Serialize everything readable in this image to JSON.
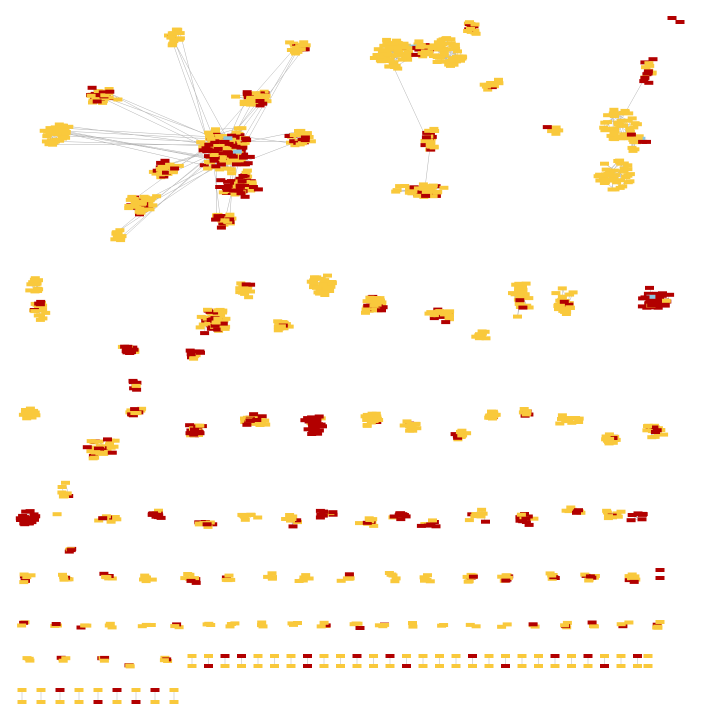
{
  "network": {
    "node_colors": {
      "yellow": "#F9C93C",
      "red": "#B20000",
      "blue": "#8DC6E0"
    },
    "edge_color": "#B3B3B3",
    "background": "#FFFFFF",
    "components": [
      {
        "id": "c1",
        "kind": "hub-network",
        "yellow": 520,
        "red": 170,
        "blue": 4
      },
      {
        "id": "c2",
        "kind": "dense-cluster-pair",
        "yellow": 210,
        "red": 20,
        "blue": 2
      },
      {
        "id": "c3",
        "kind": "dense-cluster-pair",
        "yellow": 140,
        "red": 14,
        "blue": 2
      },
      {
        "id": "c4",
        "kind": "cluster",
        "yellow": 28,
        "red": 6
      },
      {
        "id": "c5",
        "kind": "cluster",
        "yellow": 30,
        "red": 14
      },
      {
        "id": "c6",
        "kind": "cluster",
        "yellow": 40,
        "red": 32
      },
      {
        "id": "c7",
        "kind": "dense-cluster",
        "yellow": 55,
        "red": 0
      },
      {
        "id": "c8",
        "kind": "cluster",
        "yellow": 28,
        "red": 10
      },
      {
        "id": "c9",
        "kind": "cluster",
        "yellow": 32,
        "red": 2
      },
      {
        "id": "c10",
        "kind": "cluster",
        "yellow": 30,
        "red": 2
      },
      {
        "id": "c11",
        "kind": "cluster",
        "yellow": 2,
        "red": 45,
        "blue": 1
      },
      {
        "id": "c12",
        "kind": "cluster",
        "yellow": 24,
        "red": 20
      },
      {
        "id": "c13",
        "kind": "cluster",
        "yellow": 4,
        "red": 30
      }
    ],
    "small_graph_rows": 6
  }
}
